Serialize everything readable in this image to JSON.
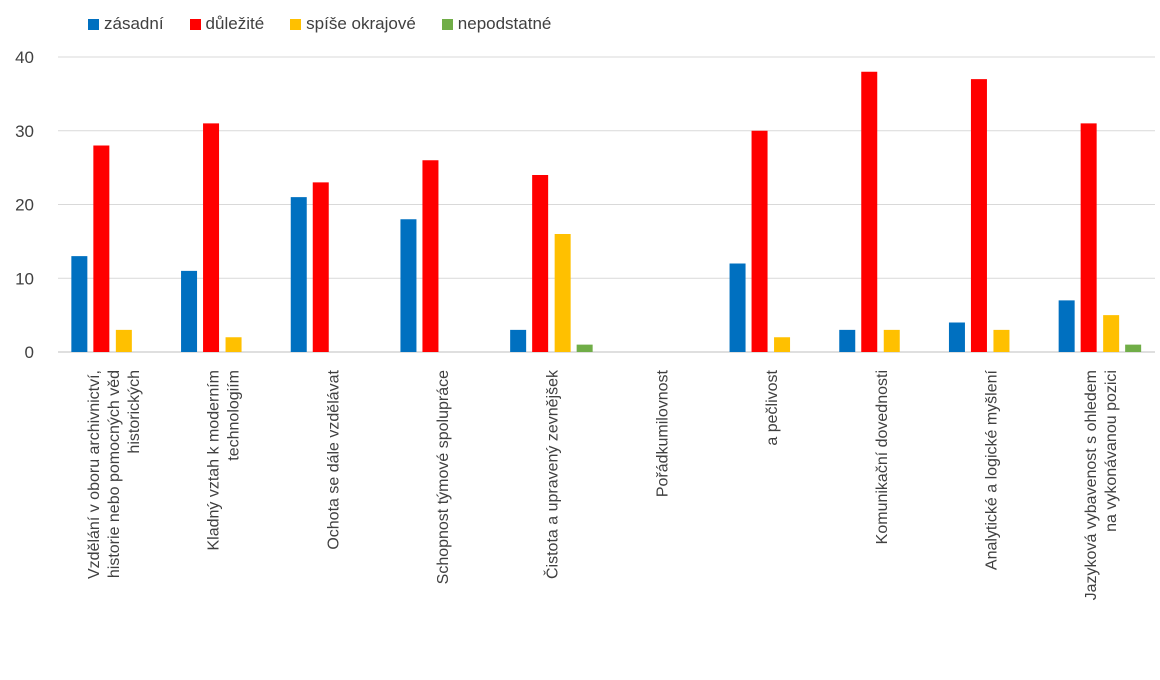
{
  "chart_data": {
    "type": "bar",
    "title": "",
    "xlabel": "",
    "ylabel": "",
    "ylim": [
      0,
      40
    ],
    "yticks": [
      0,
      10,
      20,
      30,
      40
    ],
    "grid": true,
    "legend_position": "top-left",
    "categories": [
      [
        "Vzdělání v oboru archivnictví,",
        "historie nebo pomocných věd",
        "historických"
      ],
      [
        "Kladný vztah k moderním",
        "technologiím"
      ],
      [
        "Ochota se dále vzdělávat"
      ],
      [
        "Schopnost týmové spolupráce"
      ],
      [
        "Čistota a upravený zevnějšek"
      ],
      [
        "Pořádkumilovnost"
      ],
      [
        "a pečlivost"
      ],
      [
        "Komunikační dovednosti"
      ],
      [
        "Analytické a logické myšlení"
      ],
      [
        "Jazyková vybavenost s  ohledem",
        "na vykonávanou pozici"
      ]
    ],
    "series": [
      {
        "name": "zásadní",
        "color": "#0070C0",
        "values": [
          13,
          11,
          21,
          18,
          3,
          0,
          12,
          3,
          4,
          7
        ]
      },
      {
        "name": "důležité",
        "color": "#FF0000",
        "values": [
          28,
          31,
          23,
          26,
          24,
          0,
          30,
          38,
          37,
          31
        ]
      },
      {
        "name": "spíše okrajové",
        "color": "#FFC000",
        "values": [
          3,
          2,
          0,
          0,
          16,
          0,
          2,
          3,
          3,
          5
        ]
      },
      {
        "name": "nepodstatné",
        "color": "#70AD47",
        "values": [
          0,
          0,
          0,
          0,
          1,
          0,
          0,
          0,
          0,
          1
        ]
      }
    ]
  }
}
